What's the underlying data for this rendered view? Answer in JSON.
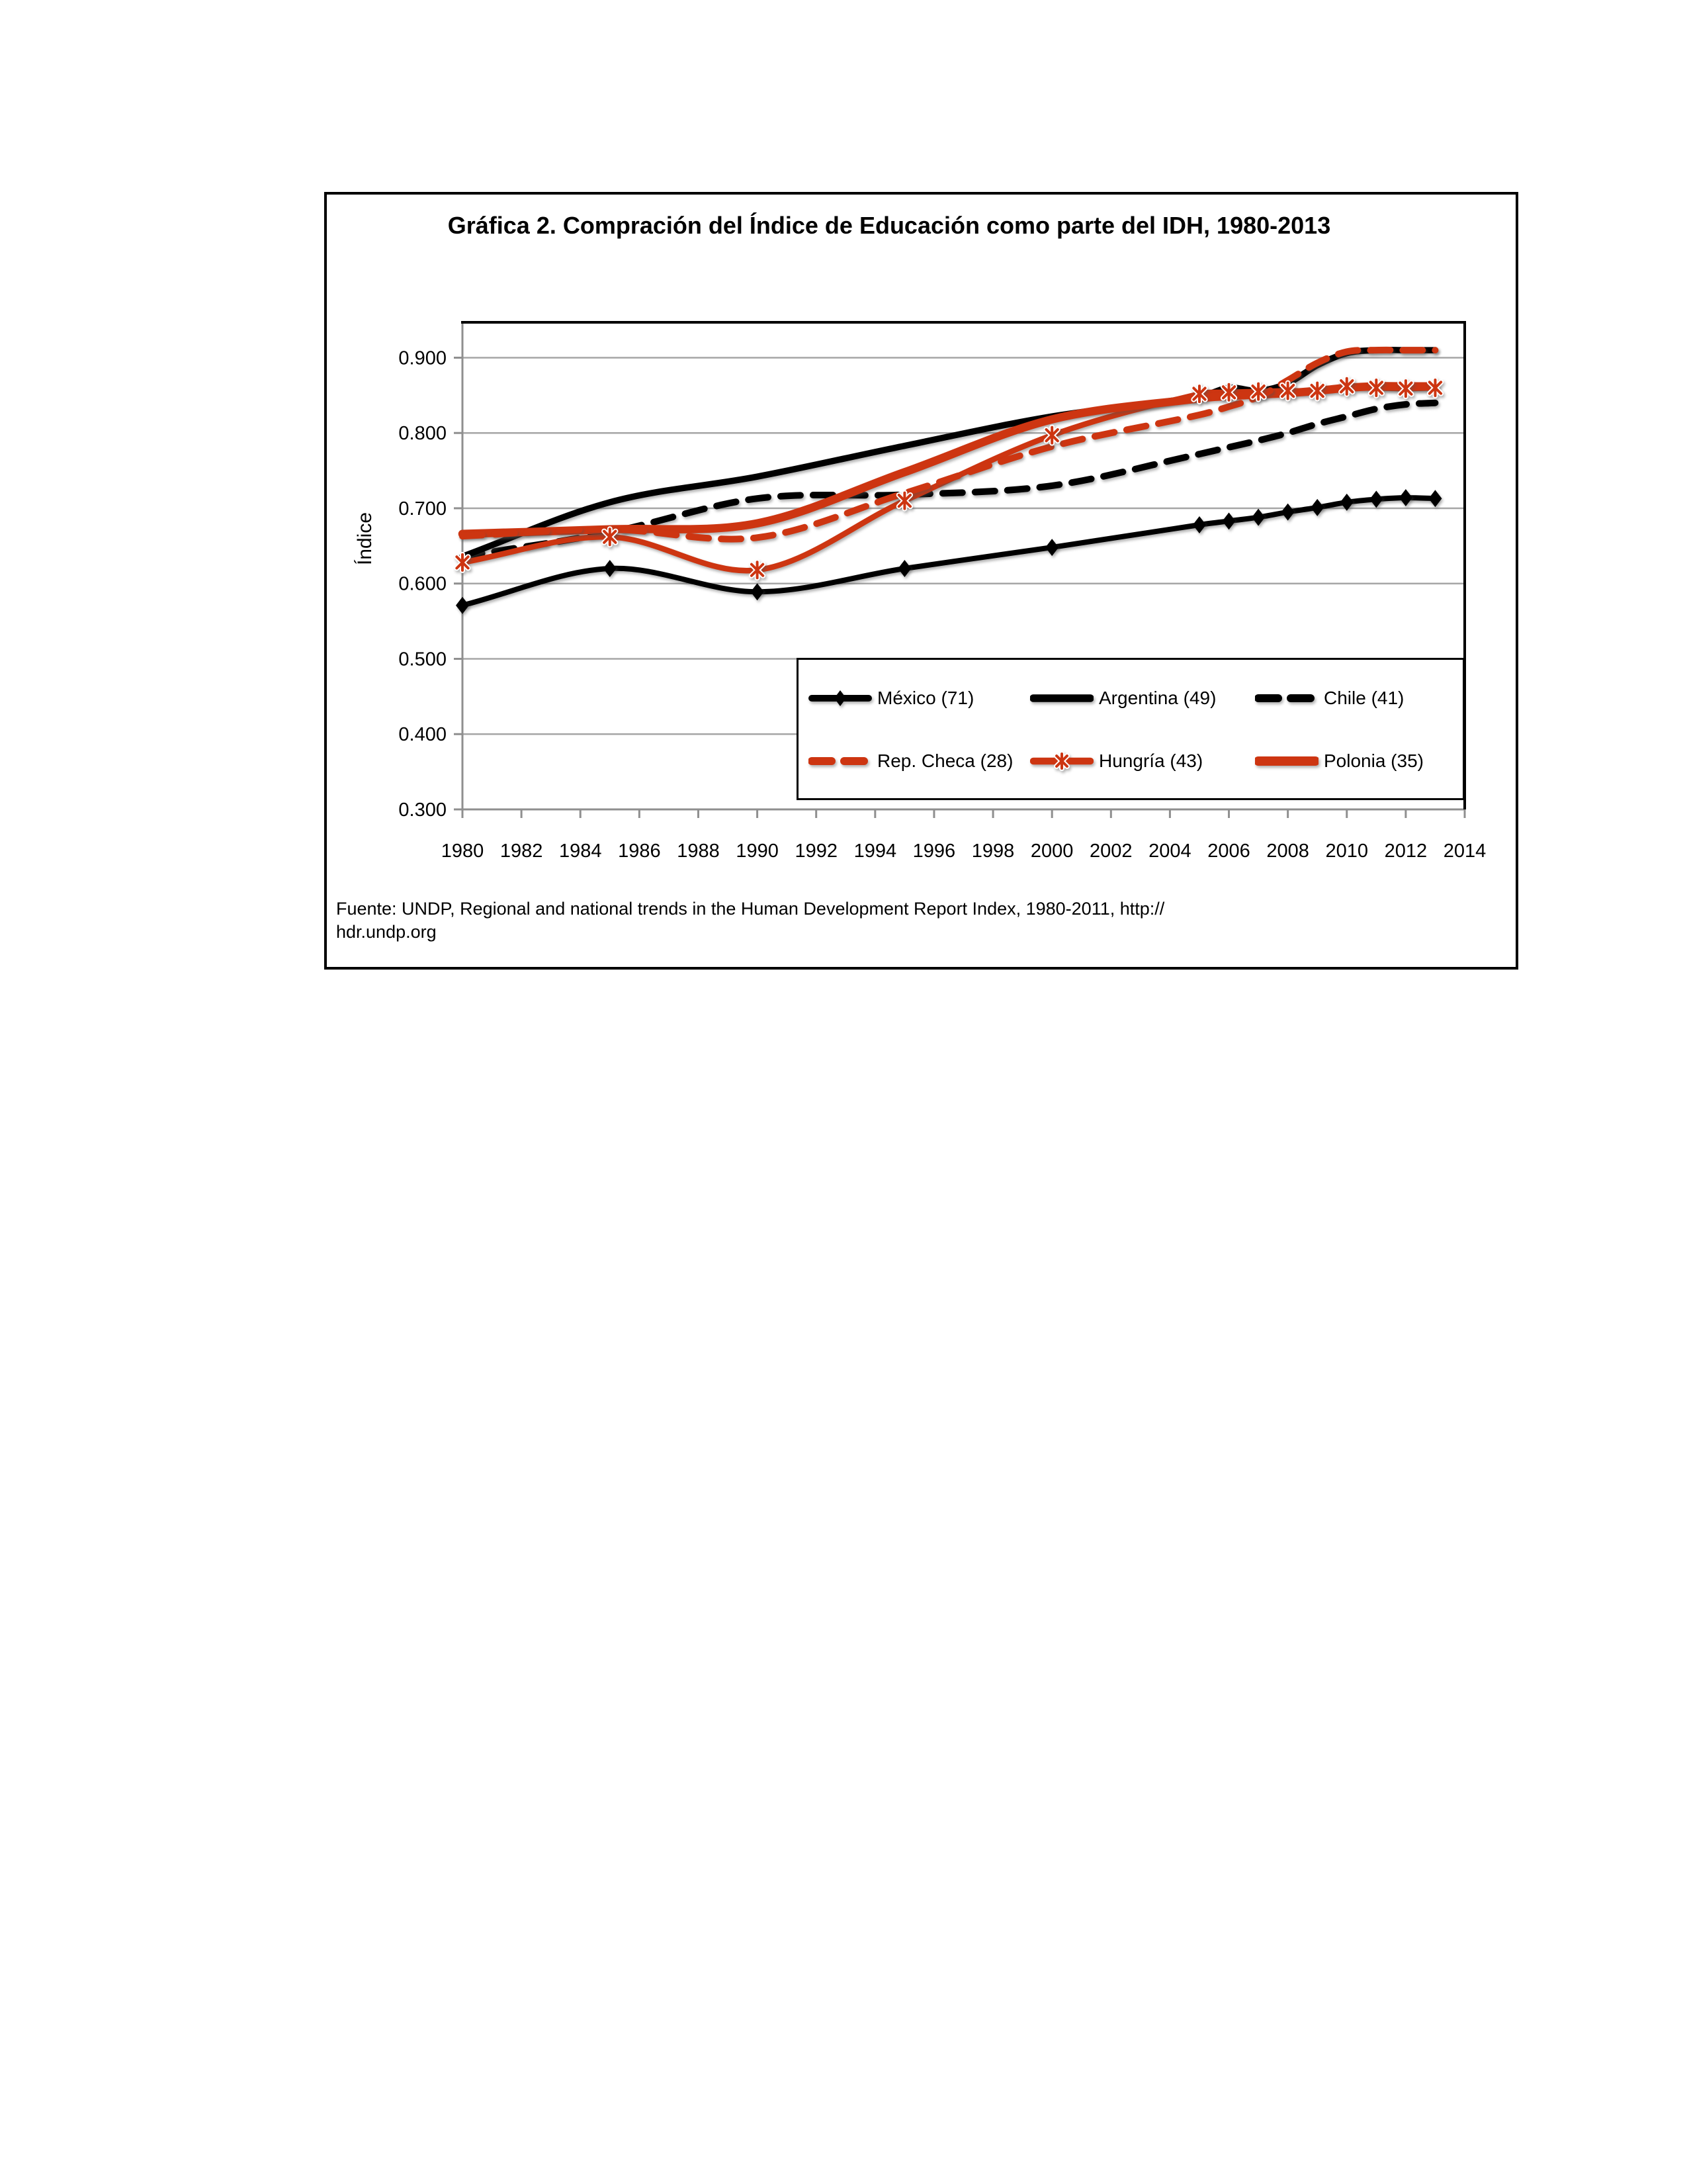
{
  "figure": {
    "title": "Gráfica 2. Compración del Índice de Educación como parte del IDH,  1980-2013",
    "source_line1": "Fuente: UNDP, Regional and national trends in  the Human Development Report Index, 1980-2011, http://",
    "source_line2": "hdr.undp.org"
  },
  "colors": {
    "series_red": "#cd3511",
    "series_black": "#000000",
    "gridline": "#a6a6a6",
    "axis": "#8f8f8f"
  },
  "chart_data": {
    "type": "line",
    "title": "Gráfica 2. Compración del Índice de Educación como parte del IDH,  1980-2013",
    "xlabel": "",
    "ylabel": "Índice",
    "xlim": [
      1980,
      2014
    ],
    "ylim": [
      0.3,
      0.947
    ],
    "yticks": [
      0.3,
      0.4,
      0.5,
      0.6,
      0.7,
      0.8,
      0.9
    ],
    "xticks": [
      1980,
      1982,
      1984,
      1986,
      1988,
      1990,
      1992,
      1994,
      1996,
      1998,
      2000,
      2002,
      2004,
      2006,
      2008,
      2010,
      2012,
      2014
    ],
    "grid": true,
    "legend_position": "inside-bottom-right",
    "x": [
      1980,
      1985,
      1990,
      1995,
      2000,
      2005,
      2006,
      2007,
      2008,
      2009,
      2010,
      2011,
      2012,
      2013
    ],
    "series": [
      {
        "name": "México (71)",
        "color": "#000000",
        "style": "solid",
        "marker": "diamond",
        "width": 8,
        "z": 2,
        "values": [
          0.571,
          0.62,
          0.589,
          0.62,
          0.648,
          0.678,
          0.683,
          0.688,
          0.695,
          0.701,
          0.708,
          0.712,
          0.714,
          0.713
        ]
      },
      {
        "name": "Argentina (49)",
        "color": "#000000",
        "style": "solid",
        "marker": "none",
        "width": 9.5,
        "z": 3,
        "values": [
          0.636,
          0.708,
          0.742,
          0.783,
          0.822,
          0.848,
          0.86,
          0.856,
          0.866,
          0.89,
          0.906,
          0.91,
          0.91,
          0.91
        ]
      },
      {
        "name": "Chile (41)",
        "color": "#000000",
        "style": "dashed",
        "marker": "none",
        "width": 10,
        "z": 1,
        "values": [
          0.636,
          0.668,
          0.713,
          0.718,
          0.73,
          0.772,
          0.781,
          0.79,
          0.8,
          0.812,
          0.822,
          0.832,
          0.838,
          0.84
        ]
      },
      {
        "name": "Rep. Checa (28)",
        "color": "#cd3511",
        "style": "dashed",
        "marker": "none",
        "width": 10,
        "z": 6,
        "values": [
          0.663,
          0.672,
          0.661,
          0.72,
          0.782,
          0.824,
          0.835,
          0.848,
          0.87,
          0.893,
          0.908,
          0.91,
          0.91,
          0.91
        ]
      },
      {
        "name": "Hungría (43)",
        "color": "#cd3511",
        "style": "solid",
        "marker": "asterisk",
        "width": 8.5,
        "z": 4,
        "values": [
          0.628,
          0.662,
          0.618,
          0.71,
          0.797,
          0.852,
          0.854,
          0.855,
          0.856,
          0.856,
          0.862,
          0.86,
          0.859,
          0.86
        ]
      },
      {
        "name": "Polonia (35)",
        "color": "#cd3511",
        "style": "solid",
        "marker": "none",
        "width": 12.5,
        "z": 5,
        "values": [
          0.666,
          0.672,
          0.68,
          0.748,
          0.818,
          0.846,
          0.849,
          0.851,
          0.853,
          0.856,
          0.86,
          0.862,
          0.862,
          0.862
        ]
      }
    ]
  }
}
